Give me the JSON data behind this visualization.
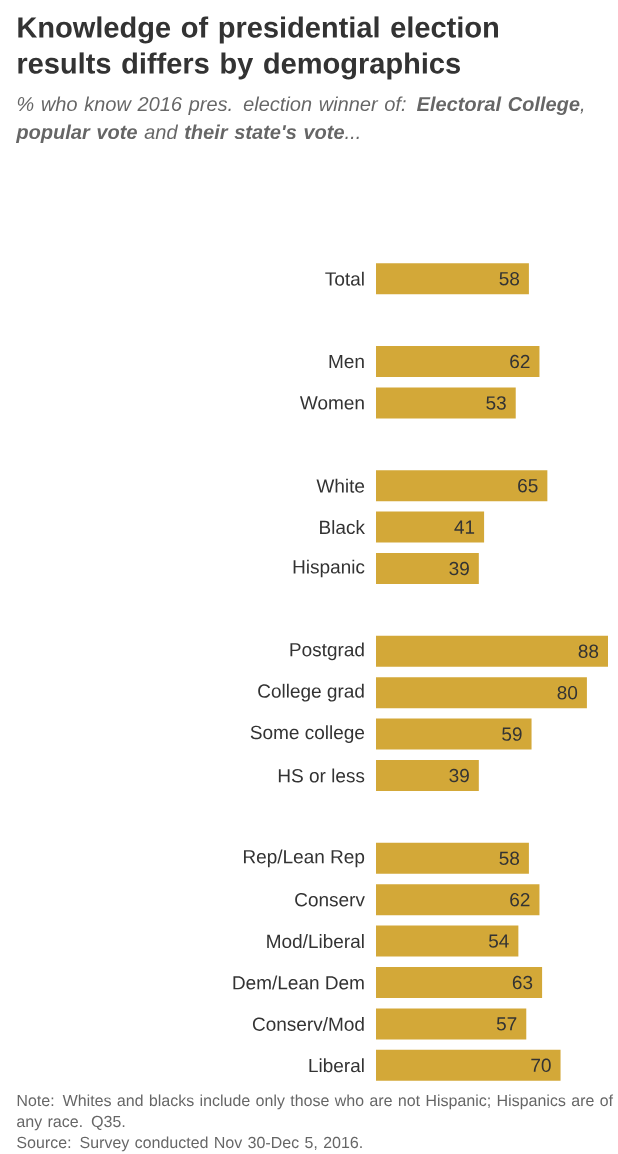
{
  "chart_data": {
    "type": "bar",
    "orientation": "horizontal",
    "title": "Knowledge of presidential election results differs by demographics",
    "subtitle": "% who know 2016 pres. election winner of: **Electoral College**, **popular vote** and **their state's vote**...",
    "categories": [
      "Total",
      null,
      "Men",
      "Women",
      null,
      "White",
      "Black",
      "Hispanic",
      null,
      "Postgrad",
      "College grad",
      "Some college",
      "HS or less",
      null,
      "Rep/Lean Rep",
      "Conserv",
      "Mod/Liberal",
      "Dem/Lean Dem",
      "Conserv/Mod",
      "Liberal"
    ],
    "values": [
      58,
      null,
      62,
      53,
      null,
      65,
      41,
      39,
      null,
      88,
      80,
      59,
      39,
      null,
      58,
      62,
      54,
      63,
      57,
      70
    ],
    "color": "#d3a838",
    "data_labels": true,
    "annotations": [
      "Note: Whites and blacks include only those who are not Hispanic; Hispanics are of any race. Q35.",
      "Source: Survey conducted Nov 30-Dec 5, 2016."
    ]
  }
}
